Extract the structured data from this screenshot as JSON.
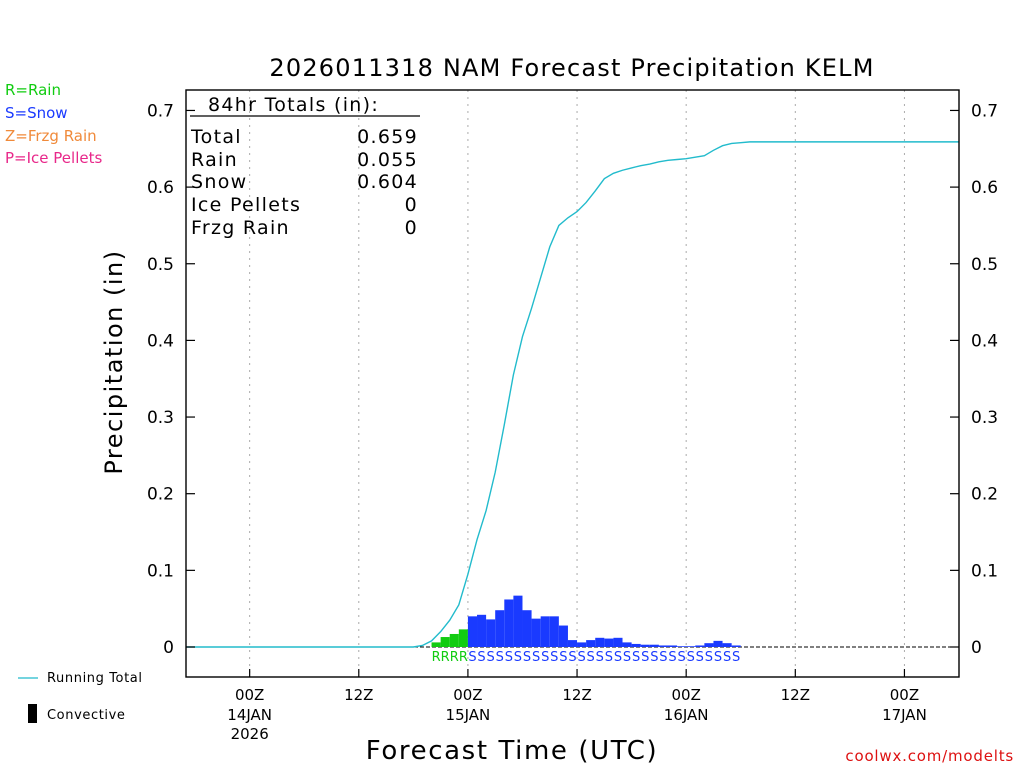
{
  "colors": {
    "rain": "#11cc11",
    "snow": "#1a3aff",
    "frzg_rain": "#f08a3a",
    "ice_pellets": "#e8288a",
    "running_total": "#22bbcc",
    "convective": "#000000",
    "credit": "#dd1111"
  },
  "chart_data": {
    "type": "bar",
    "title": "2026011318 NAM Forecast Precipitation KELM",
    "xlabel": "Forecast Time (UTC)",
    "ylabel": "Precipitation (in)",
    "ylim": [
      0,
      0.74
    ],
    "yticks": [
      0,
      0.1,
      0.2,
      0.3,
      0.4,
      0.5,
      0.6,
      0.7
    ],
    "ytick_labels": [
      "0",
      "0.1",
      "0.2",
      "0.3",
      "0.4",
      "0.5",
      "0.6",
      "0.7"
    ],
    "x_unit": "hours since 2026-01-13 18Z",
    "xlim": [
      -1,
      84
    ],
    "xticks": [
      {
        "hour": 6,
        "label": "00Z",
        "date": "14JAN",
        "year": "2026"
      },
      {
        "hour": 18,
        "label": "12Z",
        "date": "",
        "year": ""
      },
      {
        "hour": 30,
        "label": "00Z",
        "date": "15JAN",
        "year": ""
      },
      {
        "hour": 42,
        "label": "12Z",
        "date": "",
        "year": ""
      },
      {
        "hour": 54,
        "label": "00Z",
        "date": "16JAN",
        "year": ""
      },
      {
        "hour": 66,
        "label": "12Z",
        "date": "",
        "year": ""
      },
      {
        "hour": 78,
        "label": "00Z",
        "date": "17JAN",
        "year": ""
      }
    ],
    "grid": "vertical dotted at tick hours",
    "legend": {
      "ptype_keys": [
        {
          "key": "rain",
          "text": "R=Rain"
        },
        {
          "key": "snow",
          "text": "S=Snow"
        },
        {
          "key": "frzg_rain",
          "text": "Z=Frzg Rain"
        },
        {
          "key": "ice_pellets",
          "text": "P=Ice Pellets"
        }
      ],
      "running_total": "Running Total",
      "convective": "Convective"
    },
    "totals": {
      "heading": "84hr Totals (in):",
      "rows": [
        {
          "label": "Total",
          "value": "0.659"
        },
        {
          "label": "Rain",
          "value": "0.055"
        },
        {
          "label": "Snow",
          "value": "0.604"
        },
        {
          "label": "Ice Pellets",
          "value": "0"
        },
        {
          "label": "Frzg Rain",
          "value": "0"
        }
      ]
    },
    "bar_width_hours": 1,
    "bars": [
      {
        "hour": 26,
        "value": 0.006,
        "type": "rain"
      },
      {
        "hour": 27,
        "value": 0.013,
        "type": "rain"
      },
      {
        "hour": 28,
        "value": 0.017,
        "type": "rain"
      },
      {
        "hour": 29,
        "value": 0.023,
        "type": "rain"
      },
      {
        "hour": 30,
        "value": 0.04,
        "type": "snow"
      },
      {
        "hour": 31,
        "value": 0.042,
        "type": "snow"
      },
      {
        "hour": 32,
        "value": 0.036,
        "type": "snow"
      },
      {
        "hour": 33,
        "value": 0.048,
        "type": "snow"
      },
      {
        "hour": 34,
        "value": 0.062,
        "type": "snow"
      },
      {
        "hour": 35,
        "value": 0.067,
        "type": "snow"
      },
      {
        "hour": 36,
        "value": 0.048,
        "type": "snow"
      },
      {
        "hour": 37,
        "value": 0.037,
        "type": "snow"
      },
      {
        "hour": 38,
        "value": 0.04,
        "type": "snow"
      },
      {
        "hour": 39,
        "value": 0.04,
        "type": "snow"
      },
      {
        "hour": 40,
        "value": 0.028,
        "type": "snow"
      },
      {
        "hour": 41,
        "value": 0.009,
        "type": "snow"
      },
      {
        "hour": 42,
        "value": 0.006,
        "type": "snow"
      },
      {
        "hour": 43,
        "value": 0.009,
        "type": "snow"
      },
      {
        "hour": 44,
        "value": 0.012,
        "type": "snow"
      },
      {
        "hour": 45,
        "value": 0.011,
        "type": "snow"
      },
      {
        "hour": 46,
        "value": 0.012,
        "type": "snow"
      },
      {
        "hour": 47,
        "value": 0.006,
        "type": "snow"
      },
      {
        "hour": 48,
        "value": 0.004,
        "type": "snow"
      },
      {
        "hour": 49,
        "value": 0.003,
        "type": "snow"
      },
      {
        "hour": 50,
        "value": 0.003,
        "type": "snow"
      },
      {
        "hour": 51,
        "value": 0.002,
        "type": "snow"
      },
      {
        "hour": 52,
        "value": 0.002,
        "type": "snow"
      },
      {
        "hour": 53,
        "value": 0.001,
        "type": "snow"
      },
      {
        "hour": 54,
        "value": 0.001,
        "type": "snow"
      },
      {
        "hour": 55,
        "value": 0.002,
        "type": "snow"
      },
      {
        "hour": 56,
        "value": 0.005,
        "type": "snow"
      },
      {
        "hour": 57,
        "value": 0.008,
        "type": "snow"
      },
      {
        "hour": 58,
        "value": 0.005,
        "type": "snow"
      },
      {
        "hour": 59,
        "value": 0.002,
        "type": "snow"
      }
    ],
    "ptype_letters": [
      {
        "start_hour": 26,
        "count": 4,
        "letter": "R",
        "type": "rain"
      },
      {
        "start_hour": 30,
        "count": 30,
        "letter": "S",
        "type": "snow"
      }
    ],
    "running_total": {
      "x": [
        -1,
        24,
        25,
        26,
        27,
        28,
        29,
        30,
        31,
        32,
        33,
        34,
        35,
        36,
        37,
        38,
        39,
        40,
        41,
        42,
        43,
        44,
        45,
        46,
        47,
        48,
        49,
        50,
        51,
        52,
        53,
        54,
        55,
        56,
        57,
        58,
        59,
        60,
        61,
        62,
        84
      ],
      "y": [
        0,
        0,
        0.002,
        0.008,
        0.02,
        0.035,
        0.055,
        0.095,
        0.14,
        0.178,
        0.228,
        0.29,
        0.355,
        0.405,
        0.442,
        0.482,
        0.522,
        0.55,
        0.56,
        0.568,
        0.58,
        0.595,
        0.611,
        0.618,
        0.622,
        0.625,
        0.628,
        0.63,
        0.633,
        0.635,
        0.636,
        0.637,
        0.639,
        0.641,
        0.648,
        0.654,
        0.657,
        0.658,
        0.659,
        0.659,
        0.659
      ]
    },
    "credit": "coolwx.com/modelts"
  }
}
